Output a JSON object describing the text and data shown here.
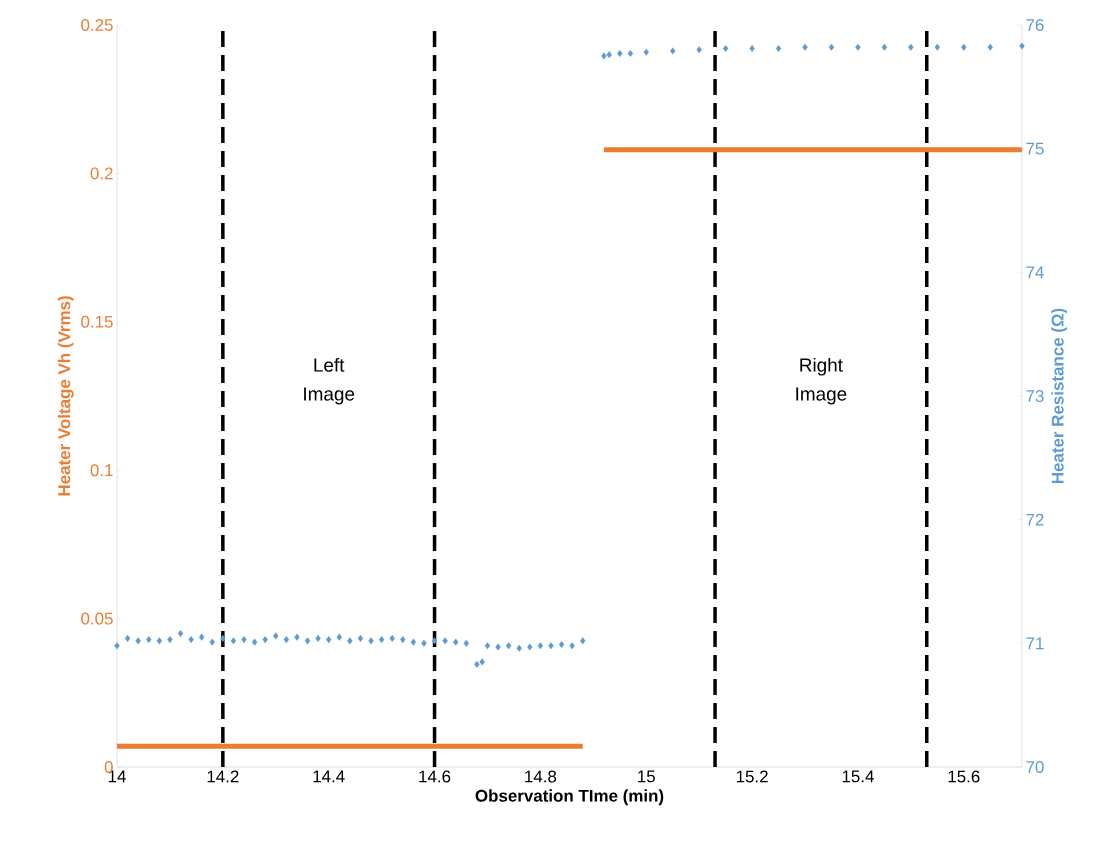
{
  "chart_data": {
    "type": "line",
    "xlabel": "Observation TIme (min)",
    "ylabel": "Heater Voltage Vh (Vrms)",
    "y2label": "Heater Resistance (Ω)",
    "xlim": [
      14,
      15.71
    ],
    "xticks": [
      14,
      14.2,
      14.4,
      14.6,
      14.8,
      15,
      15.2,
      15.4,
      15.6
    ],
    "ylim": [
      0,
      0.25
    ],
    "yticks": [
      0,
      0.05,
      0.1,
      0.15,
      0.2,
      0.25
    ],
    "y2lim": [
      70,
      76
    ],
    "y2ticks": [
      70,
      71,
      72,
      73,
      74,
      75,
      76
    ],
    "series": [
      {
        "color": "#ed7d31",
        "marker": "none",
        "line_style": "solid",
        "x": [
          14,
          14.88,
          14.9,
          14.92,
          15.71
        ],
        "values": [
          0.007,
          0.007,
          null,
          0.208,
          0.208
        ]
      },
      {
        "type": "scatter",
        "axis": "y2",
        "color": "#5b9bd5",
        "marker": "diamond",
        "x": [
          14.0,
          14.02,
          14.04,
          14.06,
          14.08,
          14.1,
          14.12,
          14.14,
          14.16,
          14.18,
          14.2,
          14.22,
          14.24,
          14.26,
          14.28,
          14.3,
          14.32,
          14.34,
          14.36,
          14.38,
          14.4,
          14.42,
          14.44,
          14.46,
          14.48,
          14.5,
          14.52,
          14.54,
          14.56,
          14.58,
          14.6,
          14.62,
          14.64,
          14.66,
          14.68,
          14.69,
          14.7,
          14.72,
          14.74,
          14.76,
          14.78,
          14.8,
          14.82,
          14.84,
          14.86,
          14.88,
          14.92,
          14.93,
          14.95,
          14.97,
          15.0,
          15.05,
          15.1,
          15.15,
          15.2,
          15.25,
          15.3,
          15.35,
          15.4,
          15.45,
          15.5,
          15.55,
          15.6,
          15.65,
          15.71
        ],
        "values": [
          70.98,
          71.04,
          71.02,
          71.03,
          71.02,
          71.03,
          71.08,
          71.03,
          71.05,
          71.01,
          71.04,
          71.02,
          71.03,
          71.01,
          71.03,
          71.06,
          71.03,
          71.05,
          71.02,
          71.04,
          71.03,
          71.05,
          71.02,
          71.04,
          71.02,
          71.03,
          71.04,
          71.03,
          71.01,
          71.0,
          71.02,
          71.02,
          71.01,
          71.0,
          70.83,
          70.85,
          70.98,
          70.97,
          70.98,
          70.96,
          70.97,
          70.98,
          70.98,
          70.99,
          70.98,
          71.02,
          75.75,
          75.76,
          75.77,
          75.77,
          75.78,
          75.79,
          75.8,
          75.81,
          75.81,
          75.81,
          75.82,
          75.82,
          75.82,
          75.82,
          75.82,
          75.82,
          75.82,
          75.82,
          75.83
        ]
      }
    ],
    "ref_lines": [
      {
        "axis": "x",
        "value": 14.2,
        "color": "#000000",
        "line_style": "dashed"
      },
      {
        "axis": "x",
        "value": 14.6,
        "color": "#000000",
        "line_style": "dashed"
      },
      {
        "axis": "x",
        "value": 15.13,
        "color": "#000000",
        "line_style": "dashed"
      },
      {
        "axis": "x",
        "value": 15.53,
        "color": "#000000",
        "line_style": "dashed"
      }
    ],
    "annotations": [
      "Left Image",
      "Right Image"
    ]
  }
}
